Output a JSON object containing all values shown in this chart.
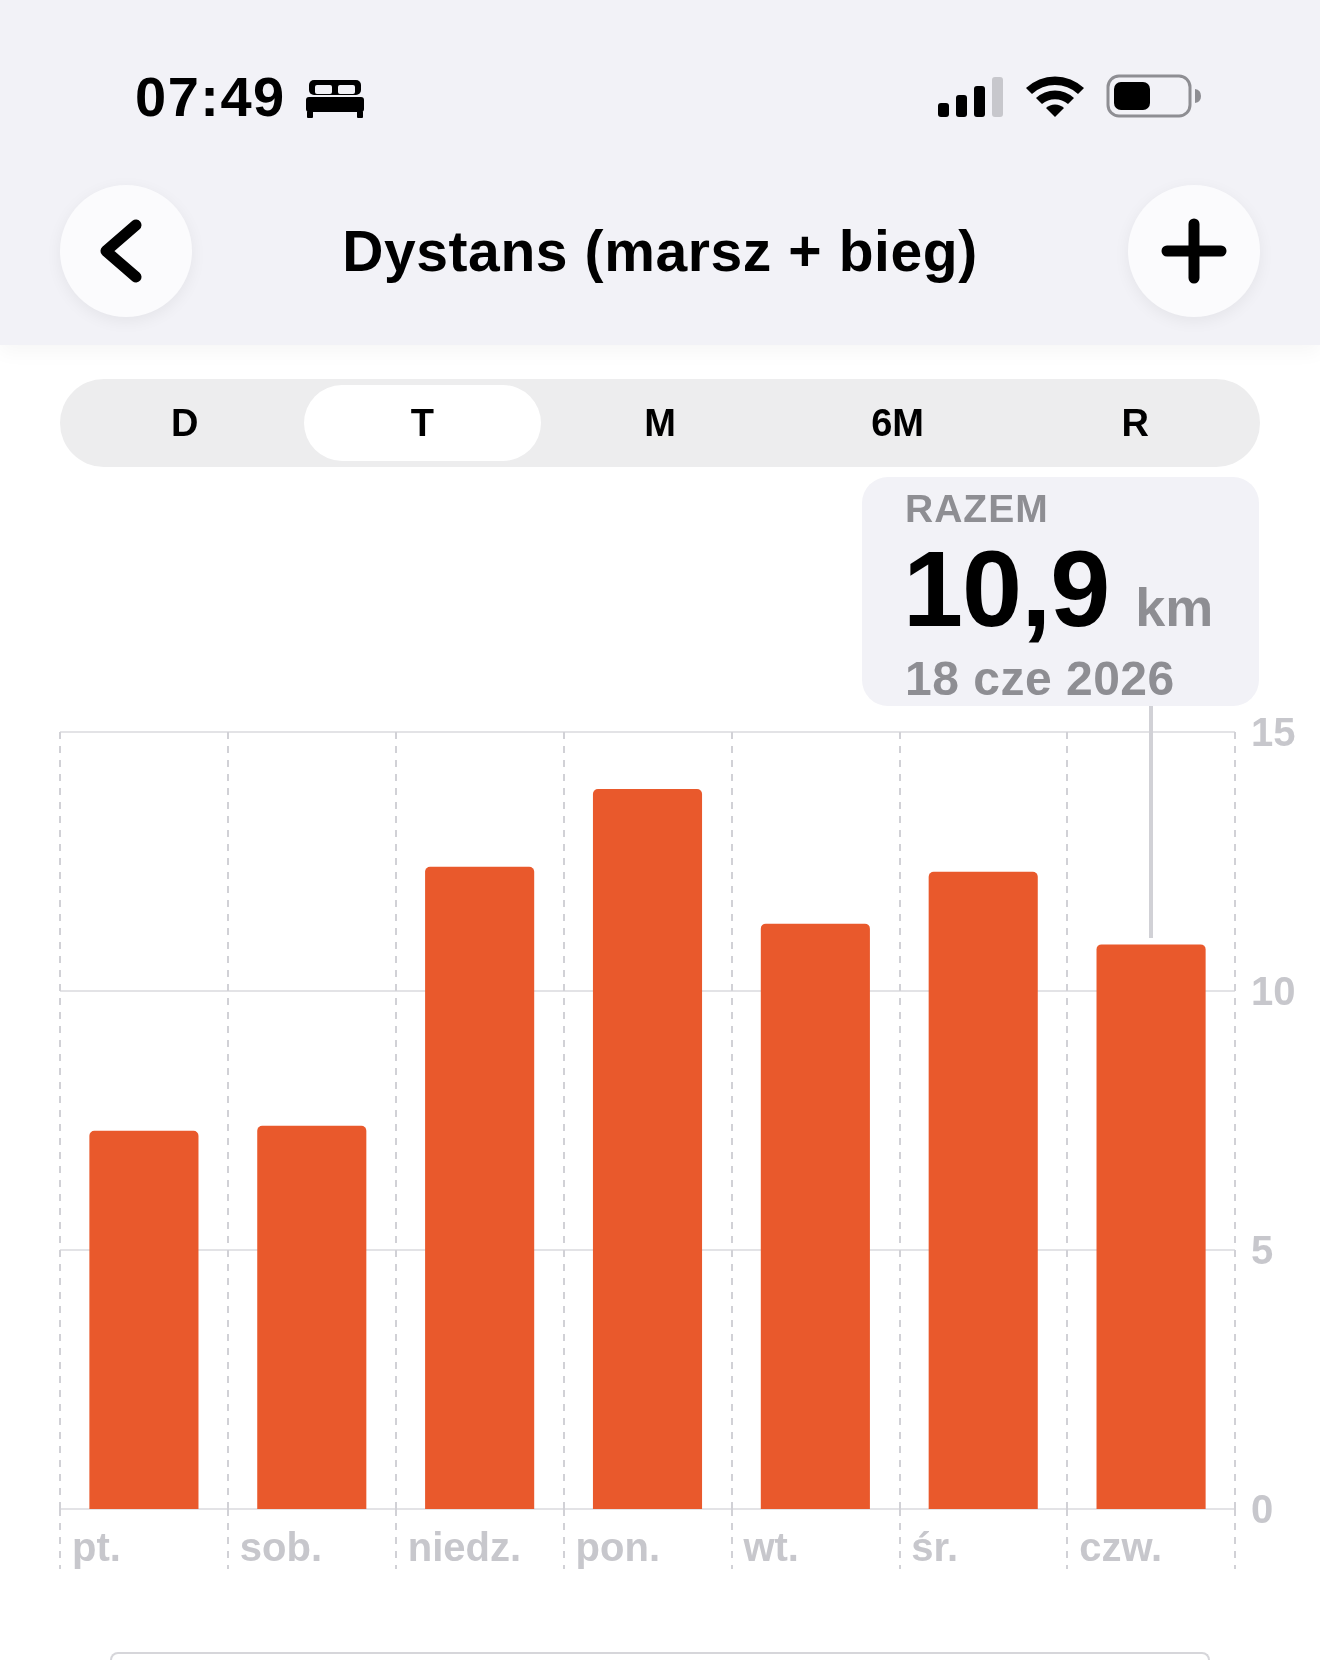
{
  "chart_data": {
    "type": "bar",
    "title": "Dystans (marsz + bieg)",
    "categories": [
      "pt.",
      "sob.",
      "niedz.",
      "pon.",
      "wt.",
      "śr.",
      "czw."
    ],
    "values": [
      7.3,
      7.4,
      12.4,
      13.9,
      11.3,
      12.3,
      10.9
    ],
    "color": "#e9592c",
    "ylim": [
      0,
      15
    ],
    "yticks": [
      0,
      5,
      10,
      15
    ],
    "grid": true,
    "annotations": [
      "07:49",
      "D",
      "T",
      "M",
      "6M",
      "R",
      "RAZEM",
      {
        "text": "10,9",
        "x": "czw.",
        "y": 10.9
      },
      "km",
      "18 cze 2026"
    ]
  }
}
